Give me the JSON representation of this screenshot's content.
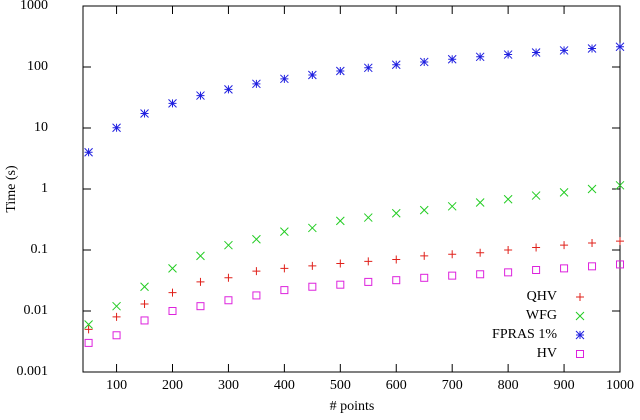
{
  "chart_data": {
    "type": "scatter",
    "xlabel": "# points",
    "ylabel": "Time (s)",
    "xlim": [
      40,
      1000
    ],
    "xticks": [
      100,
      200,
      300,
      400,
      500,
      600,
      700,
      800,
      900,
      1000
    ],
    "ylim": [
      0.001,
      1000
    ],
    "yticks": [
      0.001,
      0.01,
      0.1,
      1,
      10,
      100,
      1000
    ],
    "yscale": "log",
    "grid": false,
    "legend": "right",
    "x": [
      50,
      100,
      150,
      200,
      250,
      300,
      350,
      400,
      450,
      500,
      550,
      600,
      650,
      700,
      750,
      800,
      850,
      900,
      950,
      1000
    ],
    "series": [
      {
        "name": "QHV",
        "color": "#e0201a",
        "marker": "plus",
        "values": [
          0.005,
          0.008,
          0.013,
          0.02,
          0.03,
          0.035,
          0.045,
          0.05,
          0.055,
          0.06,
          0.065,
          0.07,
          0.08,
          0.085,
          0.09,
          0.1,
          0.11,
          0.12,
          0.13,
          0.14
        ]
      },
      {
        "name": "WFG",
        "color": "#22cc22",
        "marker": "cross",
        "values": [
          0.006,
          0.012,
          0.025,
          0.05,
          0.08,
          0.12,
          0.15,
          0.2,
          0.23,
          0.3,
          0.34,
          0.4,
          0.45,
          0.52,
          0.6,
          0.68,
          0.78,
          0.88,
          1.0,
          1.15
        ]
      },
      {
        "name": "FPRAS 1%",
        "color": "#2020e0",
        "marker": "star",
        "values": [
          4.0,
          10.1,
          17.3,
          25.3,
          34,
          43,
          53,
          64,
          74,
          86,
          97,
          109,
          121,
          134,
          147,
          160,
          173,
          187,
          201,
          215
        ]
      },
      {
        "name": "HV",
        "color": "#dd22dd",
        "marker": "square",
        "values": [
          0.003,
          0.004,
          0.007,
          0.01,
          0.012,
          0.015,
          0.018,
          0.022,
          0.025,
          0.027,
          0.03,
          0.032,
          0.035,
          0.038,
          0.04,
          0.043,
          0.047,
          0.05,
          0.054,
          0.058
        ]
      }
    ]
  }
}
